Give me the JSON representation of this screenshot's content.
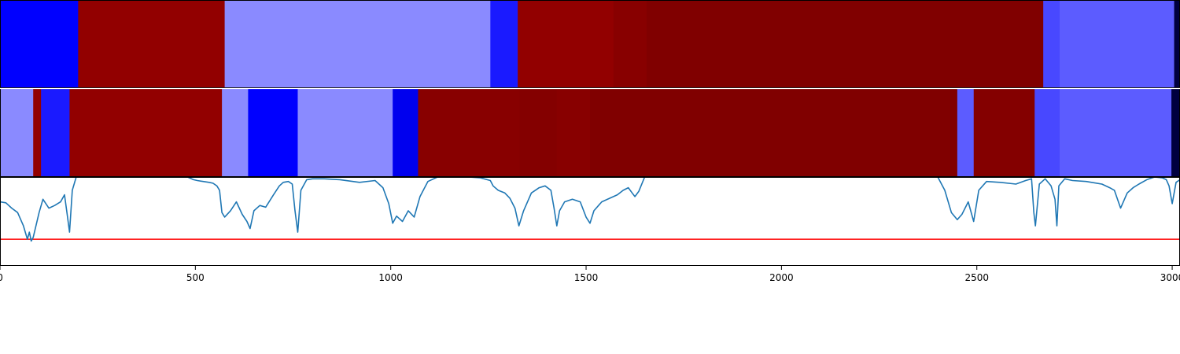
{
  "colors": {
    "line": "#1f77b4",
    "threshold": "#ff0000",
    "frame": "#000000",
    "background": "#ffffff"
  },
  "chart_data": [
    {
      "type": "heatmap",
      "panel": "top-strip",
      "xlim": [
        0,
        3020
      ],
      "segments": [
        {
          "start": 0,
          "end": 200,
          "color": "#0000ff"
        },
        {
          "start": 200,
          "end": 575,
          "color": "#920000"
        },
        {
          "start": 575,
          "end": 1255,
          "color": "#8a8aff"
        },
        {
          "start": 1255,
          "end": 1325,
          "color": "#1a1aff"
        },
        {
          "start": 1325,
          "end": 1570,
          "color": "#920000"
        },
        {
          "start": 1570,
          "end": 1655,
          "color": "#880000"
        },
        {
          "start": 1655,
          "end": 2670,
          "color": "#800000"
        },
        {
          "start": 2670,
          "end": 2712,
          "color": "#4848ff"
        },
        {
          "start": 2712,
          "end": 3005,
          "color": "#5c5cff"
        },
        {
          "start": 3005,
          "end": 3020,
          "color": "#000040"
        }
      ]
    },
    {
      "type": "heatmap",
      "panel": "middle-strip",
      "xlim": [
        0,
        3020
      ],
      "segments": [
        {
          "start": 0,
          "end": 85,
          "color": "#8a8aff"
        },
        {
          "start": 85,
          "end": 105,
          "color": "#920000"
        },
        {
          "start": 105,
          "end": 178,
          "color": "#1a1aff"
        },
        {
          "start": 178,
          "end": 568,
          "color": "#920000"
        },
        {
          "start": 568,
          "end": 635,
          "color": "#8a8aff"
        },
        {
          "start": 635,
          "end": 762,
          "color": "#0000ff"
        },
        {
          "start": 762,
          "end": 1005,
          "color": "#8a8aff"
        },
        {
          "start": 1005,
          "end": 1070,
          "color": "#0000ee"
        },
        {
          "start": 1070,
          "end": 1330,
          "color": "#880000"
        },
        {
          "start": 1330,
          "end": 1425,
          "color": "#840000"
        },
        {
          "start": 1425,
          "end": 1510,
          "color": "#880000"
        },
        {
          "start": 1510,
          "end": 2450,
          "color": "#800000"
        },
        {
          "start": 2450,
          "end": 2492,
          "color": "#5c5cff"
        },
        {
          "start": 2492,
          "end": 2648,
          "color": "#840000"
        },
        {
          "start": 2648,
          "end": 2712,
          "color": "#4848ff"
        },
        {
          "start": 2712,
          "end": 2998,
          "color": "#5c5cff"
        },
        {
          "start": 2998,
          "end": 3020,
          "color": "#000040"
        }
      ]
    },
    {
      "type": "line",
      "panel": "bottom-line",
      "xlim": [
        0,
        3020
      ],
      "ylim": [
        0,
        1
      ],
      "threshold": 0.3,
      "grid": false,
      "xticks": [
        0,
        500,
        1000,
        1500,
        2000,
        2500,
        3000
      ],
      "tick_labels": [
        "0",
        "500",
        "1000",
        "1500",
        "2000",
        "2500",
        "3000"
      ],
      "series": [
        {
          "x": [
            0,
            15,
            30,
            45,
            60,
            70,
            75,
            80,
            85,
            92,
            100,
            110,
            125,
            140,
            155,
            165,
            172,
            178,
            185,
            195,
            210,
            240,
            300,
            380,
            440,
            480,
            495,
            505,
            520,
            535,
            545,
            555,
            562,
            568,
            575,
            590,
            605,
            620,
            632,
            640,
            650,
            665,
            680,
            700,
            715,
            725,
            738,
            748,
            755,
            762,
            770,
            785,
            800,
            830,
            870,
            920,
            960,
            980,
            995,
            1005,
            1015,
            1030,
            1045,
            1060,
            1075,
            1095,
            1120,
            1160,
            1200,
            1230,
            1255,
            1262,
            1275,
            1292,
            1305,
            1318,
            1328,
            1340,
            1360,
            1380,
            1395,
            1410,
            1418,
            1425,
            1432,
            1445,
            1465,
            1485,
            1500,
            1510,
            1520,
            1540,
            1560,
            1580,
            1595,
            1608,
            1618,
            1625,
            1635,
            1650,
            2400,
            2418,
            2435,
            2450,
            2462,
            2478,
            2492,
            2505,
            2525,
            2560,
            2600,
            2625,
            2640,
            2646,
            2650,
            2660,
            2675,
            2690,
            2700,
            2705,
            2710,
            2725,
            2745,
            2780,
            2820,
            2840,
            2852,
            2868,
            2885,
            2900,
            2915,
            2935,
            2955,
            2975,
            2985,
            2992,
            3000,
            3010,
            3020
          ],
          "y": [
            0.72,
            0.71,
            0.65,
            0.6,
            0.45,
            0.3,
            0.38,
            0.28,
            0.32,
            0.45,
            0.6,
            0.75,
            0.65,
            0.68,
            0.72,
            0.8,
            0.58,
            0.38,
            0.85,
            1.0,
            1.0,
            1.0,
            1.0,
            1.0,
            1.0,
            1.0,
            0.97,
            0.96,
            0.95,
            0.94,
            0.93,
            0.9,
            0.85,
            0.6,
            0.55,
            0.62,
            0.72,
            0.58,
            0.5,
            0.42,
            0.62,
            0.68,
            0.66,
            0.8,
            0.9,
            0.94,
            0.95,
            0.92,
            0.62,
            0.38,
            0.85,
            0.97,
            0.98,
            0.98,
            0.97,
            0.94,
            0.96,
            0.88,
            0.7,
            0.48,
            0.56,
            0.5,
            0.62,
            0.55,
            0.78,
            0.95,
            1.0,
            1.0,
            1.0,
            0.99,
            0.96,
            0.9,
            0.85,
            0.82,
            0.76,
            0.65,
            0.45,
            0.62,
            0.82,
            0.88,
            0.9,
            0.85,
            0.65,
            0.45,
            0.62,
            0.72,
            0.75,
            0.72,
            0.55,
            0.48,
            0.62,
            0.72,
            0.76,
            0.8,
            0.85,
            0.88,
            0.82,
            0.78,
            0.84,
            1.0,
            1.0,
            0.85,
            0.6,
            0.52,
            0.58,
            0.72,
            0.5,
            0.85,
            0.95,
            0.94,
            0.92,
            0.96,
            0.98,
            0.6,
            0.45,
            0.92,
            0.98,
            0.9,
            0.75,
            0.45,
            0.9,
            0.98,
            0.96,
            0.95,
            0.92,
            0.88,
            0.85,
            0.65,
            0.82,
            0.88,
            0.92,
            0.97,
            1.0,
            0.99,
            0.97,
            0.9,
            0.7,
            0.94,
            0.97
          ]
        }
      ]
    }
  ]
}
